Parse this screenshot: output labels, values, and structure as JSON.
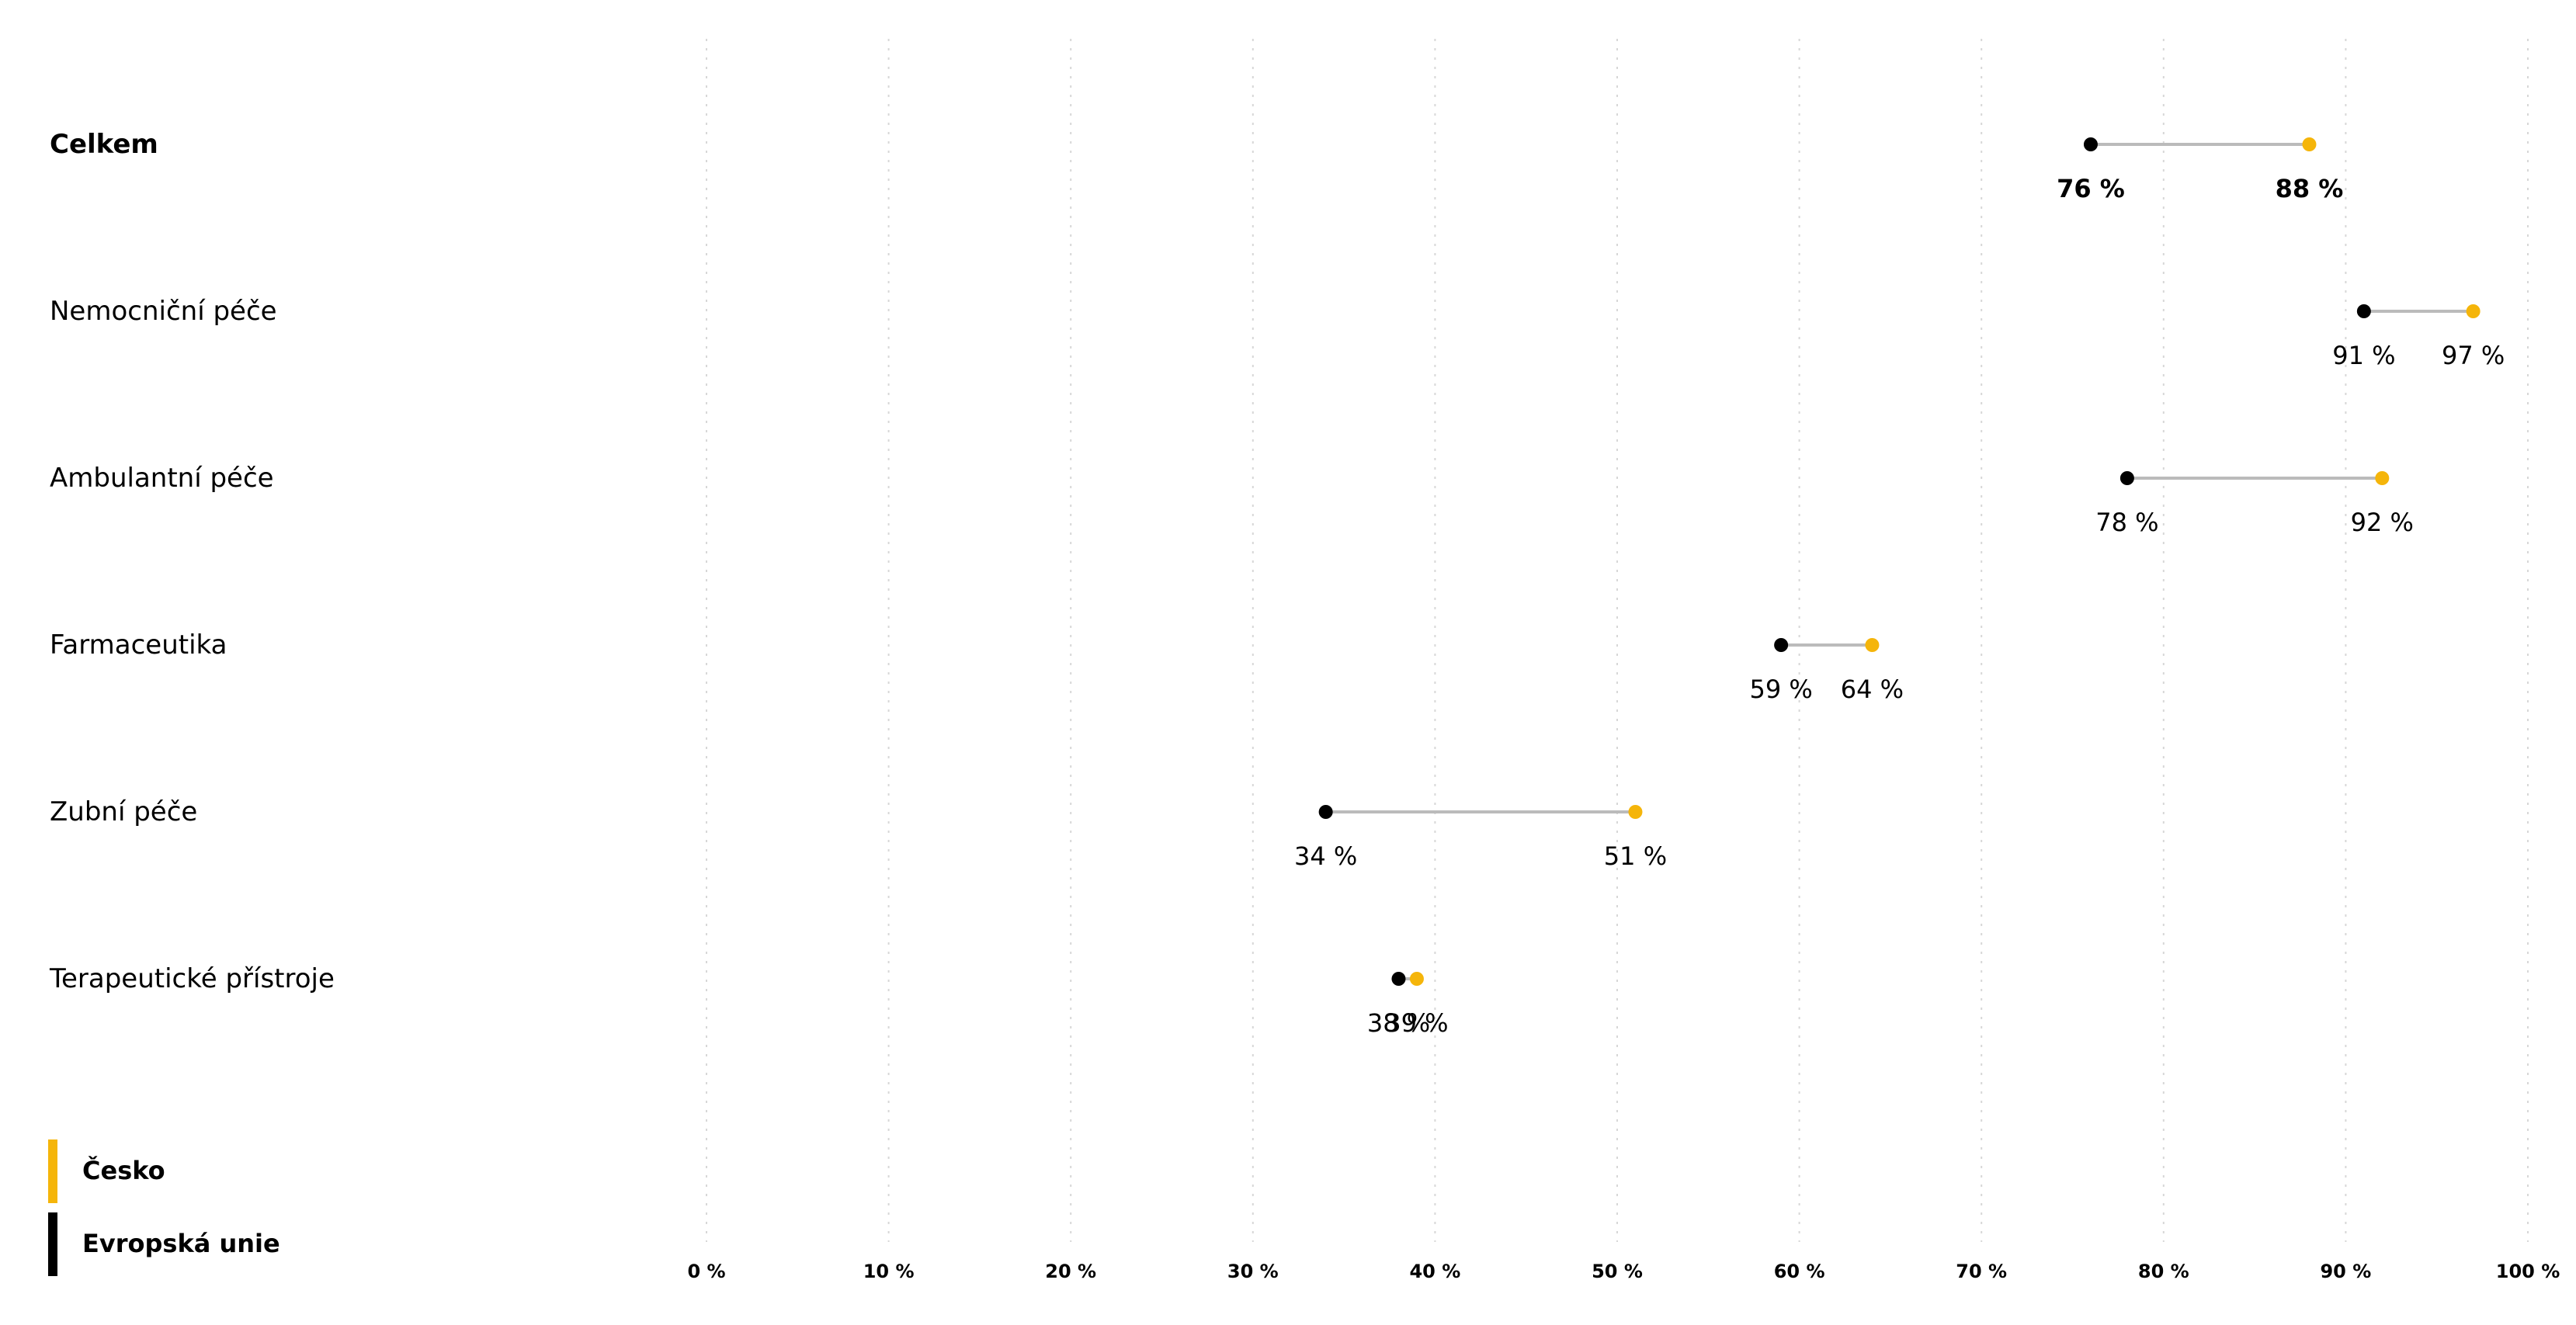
{
  "chart_data": {
    "type": "dumbbell",
    "xlim": [
      0,
      100
    ],
    "x_ticks": [
      "0 %",
      "10 %",
      "20 %",
      "30 %",
      "40 %",
      "50 %",
      "60 %",
      "70 %",
      "80 %",
      "90 %",
      "100 %"
    ],
    "grid": "vertical-dotted",
    "categories": [
      {
        "label": "Celkem",
        "bold": true,
        "eu": 76,
        "cz": 88,
        "eu_label": "76 %",
        "cz_label": "88 %"
      },
      {
        "label": "Nemocniční péče",
        "bold": false,
        "eu": 91,
        "cz": 97,
        "eu_label": "91 %",
        "cz_label": "97 %"
      },
      {
        "label": "Ambulantní péče",
        "bold": false,
        "eu": 78,
        "cz": 92,
        "eu_label": "78 %",
        "cz_label": "92 %"
      },
      {
        "label": "Farmaceutika",
        "bold": false,
        "eu": 59,
        "cz": 64,
        "eu_label": "59 %",
        "cz_label": "64 %"
      },
      {
        "label": "Zubní péče",
        "bold": false,
        "eu": 34,
        "cz": 51,
        "eu_label": "34 %",
        "cz_label": "51 %"
      },
      {
        "label": "Terapeutické přístroje",
        "bold": false,
        "eu": 38,
        "cz": 39,
        "eu_label": "38 %",
        "cz_label": "39 %"
      }
    ],
    "series": [
      {
        "key": "cz",
        "name": "Česko",
        "color": "#F5B50A"
      },
      {
        "key": "eu",
        "name": "Evropská unie",
        "color": "#000000"
      }
    ],
    "connector_color": "#BBBBBB",
    "legend_position": "bottom-left"
  }
}
